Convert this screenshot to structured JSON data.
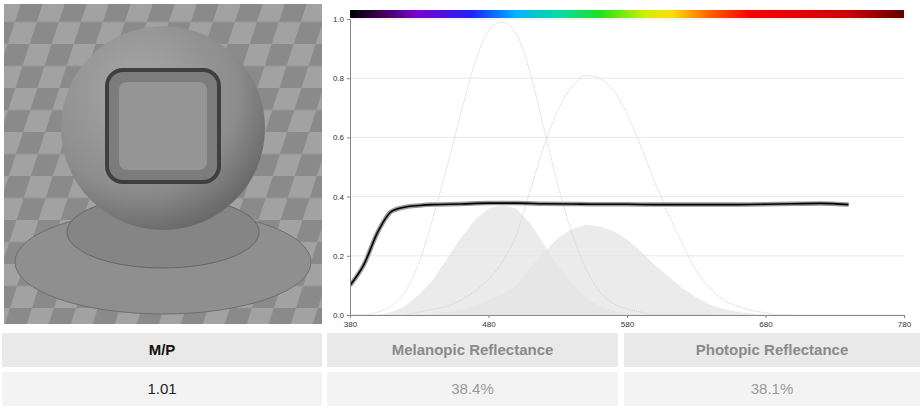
{
  "chart_data": {
    "type": "line",
    "xlim": [
      380,
      780
    ],
    "xticks": [
      380,
      480,
      580,
      680,
      780
    ],
    "ylim": [
      0,
      1
    ],
    "yticks": [
      {
        "value": 0,
        "label": "0.0"
      },
      {
        "value": 0.2,
        "label": "0.2"
      },
      {
        "value": 0.4,
        "label": "0.4"
      },
      {
        "value": 0.6,
        "label": "0.6"
      },
      {
        "value": 0.8,
        "label": "0.8"
      },
      {
        "value": 1,
        "label": "1.0"
      }
    ],
    "grid": true,
    "series": [
      {
        "type": "area",
        "color": "#e4e4e4",
        "x": [
          400,
          410,
          420,
          430,
          440,
          450,
          460,
          470,
          480,
          490,
          500,
          510,
          520,
          530,
          540,
          550,
          560,
          570,
          580,
          590
        ],
        "values": [
          0.0,
          0.01,
          0.03,
          0.07,
          0.12,
          0.19,
          0.26,
          0.32,
          0.36,
          0.37,
          0.36,
          0.31,
          0.24,
          0.17,
          0.11,
          0.06,
          0.03,
          0.015,
          0.007,
          0.0
        ]
      },
      {
        "type": "area",
        "color": "#e4e4e4",
        "x": [
          440,
          450,
          460,
          470,
          480,
          490,
          500,
          510,
          520,
          530,
          540,
          550,
          560,
          570,
          580,
          590,
          600,
          610,
          620,
          630,
          640,
          650,
          660,
          670,
          680
        ],
        "values": [
          0.01,
          0.01,
          0.02,
          0.03,
          0.05,
          0.07,
          0.1,
          0.16,
          0.21,
          0.26,
          0.29,
          0.305,
          0.3,
          0.285,
          0.255,
          0.215,
          0.17,
          0.13,
          0.09,
          0.06,
          0.035,
          0.02,
          0.01,
          0.005,
          0.0
        ]
      },
      {
        "type": "line",
        "color": "#cfcfcf",
        "line_style": "dotted",
        "x": [
          380,
          390,
          400,
          410,
          420,
          430,
          440,
          450,
          460,
          470,
          480,
          490,
          500,
          510,
          520,
          530,
          540,
          550,
          560,
          570,
          580,
          590,
          600,
          610,
          620,
          630,
          640
        ],
        "values": [
          0.0,
          0.0,
          0.01,
          0.03,
          0.08,
          0.18,
          0.33,
          0.5,
          0.68,
          0.85,
          0.96,
          0.99,
          0.95,
          0.82,
          0.63,
          0.44,
          0.28,
          0.16,
          0.08,
          0.04,
          0.02,
          0.01,
          0.0,
          0.0,
          0.0,
          0.0,
          0.0
        ]
      },
      {
        "type": "line",
        "color": "#cfcfcf",
        "line_style": "dotted",
        "x": [
          420,
          430,
          440,
          450,
          460,
          470,
          480,
          490,
          500,
          510,
          520,
          530,
          540,
          550,
          560,
          570,
          580,
          590,
          600,
          610,
          620,
          630,
          640,
          650,
          660,
          670,
          680,
          690,
          700
        ],
        "values": [
          0.0,
          0.01,
          0.02,
          0.03,
          0.05,
          0.08,
          0.12,
          0.18,
          0.27,
          0.42,
          0.57,
          0.69,
          0.77,
          0.81,
          0.8,
          0.76,
          0.68,
          0.57,
          0.45,
          0.34,
          0.24,
          0.15,
          0.09,
          0.05,
          0.03,
          0.015,
          0.008,
          0.0,
          0.0
        ]
      },
      {
        "type": "line",
        "color": "#000000",
        "line_style": "solid",
        "x": [
          380,
          390,
          400,
          410,
          420,
          430,
          440,
          460,
          480,
          500,
          520,
          540,
          560,
          580,
          600,
          620,
          640,
          660,
          680,
          700,
          720,
          740
        ],
        "values": [
          0.1,
          0.17,
          0.28,
          0.35,
          0.365,
          0.37,
          0.373,
          0.375,
          0.378,
          0.378,
          0.376,
          0.375,
          0.374,
          0.374,
          0.373,
          0.373,
          0.373,
          0.373,
          0.374,
          0.376,
          0.377,
          0.373
        ]
      }
    ]
  },
  "table": {
    "columns": [
      "M/P",
      "Melanopic Reflectance",
      "Photopic Reflectance"
    ],
    "rows": [
      [
        "1.01",
        "38.4%",
        "38.1%"
      ]
    ]
  }
}
